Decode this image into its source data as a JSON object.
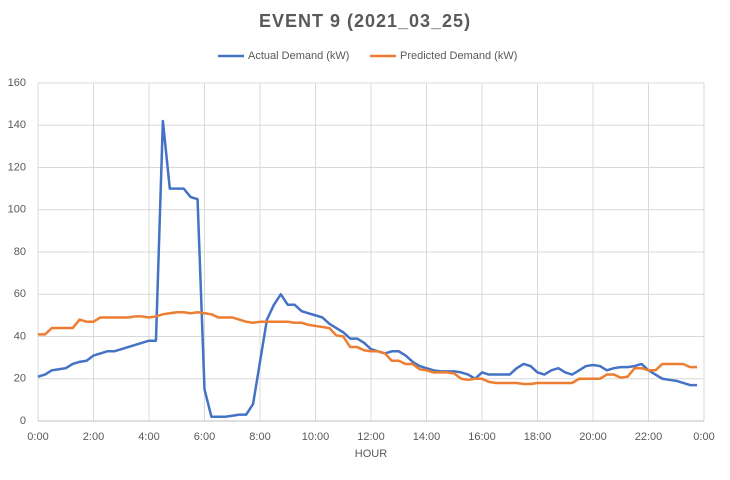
{
  "chart_data": {
    "type": "line",
    "title": "EVENT 9 (2021_03_25)",
    "x_label": "HOUR",
    "x": [
      0,
      0.25,
      0.5,
      0.75,
      1,
      1.25,
      1.5,
      1.75,
      2,
      2.25,
      2.5,
      2.75,
      3,
      3.25,
      3.5,
      3.75,
      4,
      4.25,
      4.5,
      4.75,
      5,
      5.25,
      5.5,
      5.75,
      6,
      6.25,
      6.5,
      6.75,
      7,
      7.25,
      7.5,
      7.75,
      8,
      8.25,
      8.5,
      8.75,
      9,
      9.25,
      9.5,
      9.75,
      10,
      10.25,
      10.5,
      10.75,
      11,
      11.25,
      11.5,
      11.75,
      12,
      12.25,
      12.5,
      12.75,
      13,
      13.25,
      13.5,
      13.75,
      14,
      14.25,
      14.5,
      14.75,
      15,
      15.25,
      15.5,
      15.75,
      16,
      16.25,
      16.5,
      16.75,
      17,
      17.25,
      17.5,
      17.75,
      18,
      18.25,
      18.5,
      18.75,
      19,
      19.25,
      19.5,
      19.75,
      20,
      20.25,
      20.5,
      20.75,
      21,
      21.25,
      21.5,
      21.75,
      22,
      22.25,
      22.5,
      22.75,
      23,
      23.25,
      23.5,
      23.75
    ],
    "series": [
      {
        "name": "Actual Demand (kW)",
        "color": "#4472c4",
        "values": [
          21,
          22,
          24,
          24.5,
          25,
          27,
          28,
          28.5,
          31,
          32,
          33,
          33,
          34,
          35,
          36,
          37,
          38,
          38,
          142,
          110,
          110,
          110,
          106,
          105,
          15,
          2,
          2,
          2,
          2.5,
          3,
          3,
          8,
          28,
          48,
          55,
          60,
          55,
          55,
          52,
          51,
          50,
          49,
          46,
          44,
          42,
          39,
          39,
          37,
          34,
          33,
          32,
          33,
          33,
          31,
          28,
          26,
          25,
          24,
          23.5,
          23.5,
          23.5,
          23,
          22,
          20,
          23,
          22,
          22,
          22,
          22,
          25,
          27,
          26,
          23,
          22,
          24,
          25,
          23,
          22,
          24,
          26,
          26.5,
          26,
          24,
          25,
          25.5,
          25.5,
          26,
          27,
          24,
          22,
          20,
          19.5,
          19,
          18,
          17,
          17
        ]
      },
      {
        "name": "Predicted Demand (kW)",
        "color": "#ed7d31",
        "values": [
          41,
          41,
          44,
          44,
          44,
          44,
          48,
          47,
          47,
          49,
          49,
          49,
          49,
          49,
          49.5,
          49.5,
          49,
          49.5,
          50.5,
          51,
          51.5,
          51.5,
          51,
          51.5,
          51,
          50.5,
          49,
          49,
          49,
          48,
          47,
          46.5,
          47,
          47,
          47,
          47,
          47,
          46.5,
          46.5,
          45.5,
          45,
          44.5,
          44,
          40.5,
          40,
          35,
          35,
          33.5,
          33,
          33,
          32,
          28.5,
          28.5,
          27,
          27,
          24.5,
          24,
          23,
          23,
          23,
          22.5,
          20,
          19.5,
          20,
          20,
          18.5,
          18,
          18,
          18,
          18,
          17.5,
          17.5,
          18,
          18,
          18,
          18,
          18,
          18,
          20,
          20,
          20,
          20,
          22,
          22,
          20.5,
          21,
          25,
          25,
          24,
          24,
          27,
          27,
          27,
          27,
          25.5,
          25.5
        ]
      }
    ],
    "xlim": [
      0,
      24
    ],
    "xticks": [
      {
        "value": 0,
        "label": "0:00"
      },
      {
        "value": 2,
        "label": "2:00"
      },
      {
        "value": 4,
        "label": "4:00"
      },
      {
        "value": 6,
        "label": "6:00"
      },
      {
        "value": 8,
        "label": "8:00"
      },
      {
        "value": 10,
        "label": "10:00"
      },
      {
        "value": 12,
        "label": "12:00"
      },
      {
        "value": 14,
        "label": "14:00"
      },
      {
        "value": 16,
        "label": "16:00"
      },
      {
        "value": 18,
        "label": "18:00"
      },
      {
        "value": 20,
        "label": "20:00"
      },
      {
        "value": 22,
        "label": "22:00"
      },
      {
        "value": 24,
        "label": "0:00"
      }
    ],
    "ylim": [
      0,
      160
    ],
    "yticks": [
      0,
      20,
      40,
      60,
      80,
      100,
      120,
      140,
      160
    ],
    "grid": true,
    "legend": "top"
  }
}
